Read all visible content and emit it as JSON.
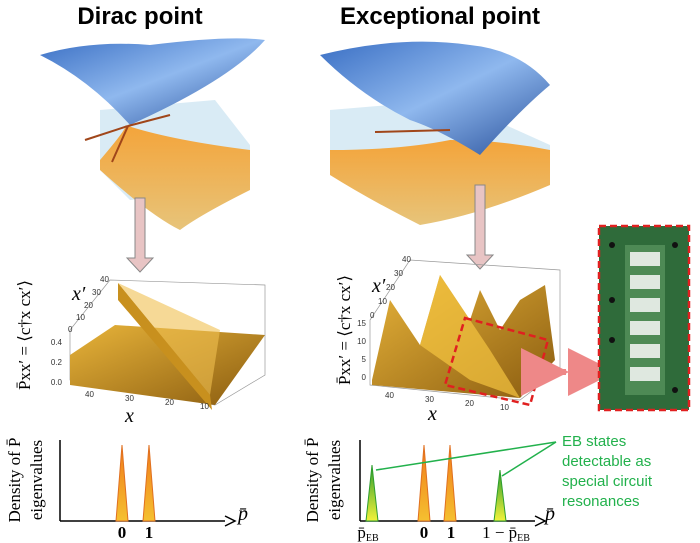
{
  "left": {
    "title": "Dirac point",
    "plot": {
      "z_label": "P̄xx′ = ⟨c†x cx′⟩",
      "x_label": "x",
      "xp_label": "x′",
      "z_ticks": [
        "0.0",
        "0.2",
        "0.4"
      ],
      "x_ticks": [
        "40",
        "30",
        "20",
        "10"
      ],
      "xp_ticks": [
        "40",
        "30",
        "20",
        "10",
        "0"
      ]
    },
    "density": {
      "y_label_1": "Density of P̄",
      "y_label_2": "eigenvalues",
      "x_label": "p̄",
      "ticks": [
        "0",
        "1"
      ]
    }
  },
  "right": {
    "title": "Exceptional point",
    "plot": {
      "z_label": "P̄xx′ = ⟨c†x cx′⟩",
      "x_label": "x",
      "xp_label": "x′",
      "z_ticks": [
        "0",
        "5",
        "10",
        "15"
      ],
      "x_ticks": [
        "40",
        "30",
        "20",
        "10"
      ],
      "xp_ticks": [
        "40",
        "30",
        "20",
        "10",
        "0"
      ]
    },
    "density": {
      "y_label_1": "Density of P̄",
      "y_label_2": "eigenvalues",
      "x_label": "p̄",
      "ticks": [
        {
          "main": "p̄",
          "sub": "EB"
        },
        {
          "main": "0",
          "sub": ""
        },
        {
          "main": "1",
          "sub": ""
        },
        {
          "main": "1 − p̄",
          "sub": "EB"
        }
      ]
    },
    "note": [
      "EB states",
      "detectable as",
      "special circuit",
      "resonances"
    ]
  }
}
